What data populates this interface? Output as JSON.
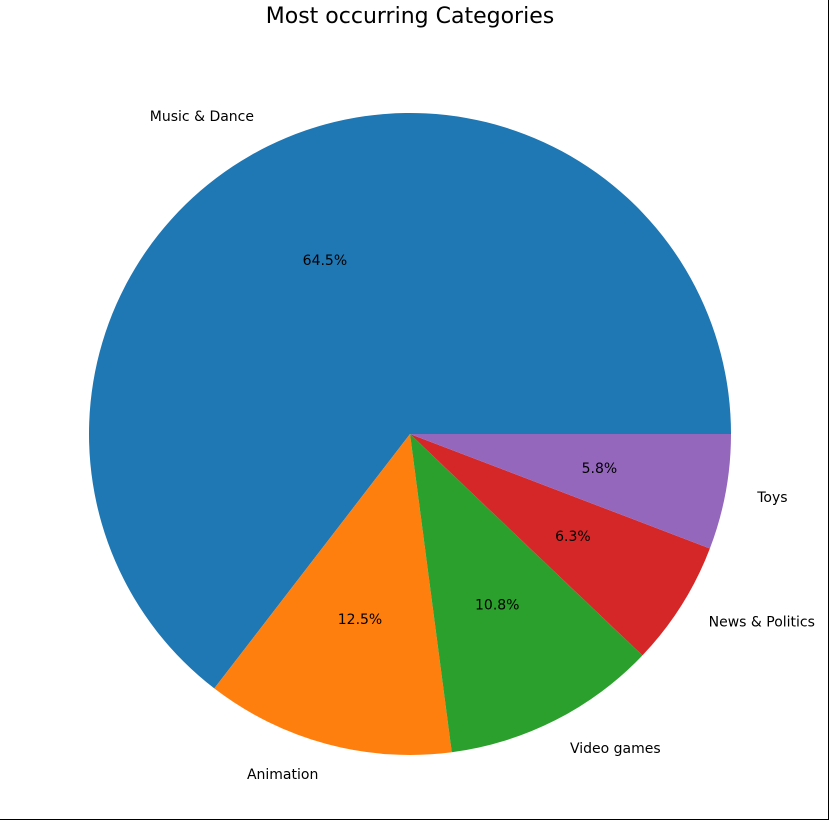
{
  "chart_data": {
    "type": "pie",
    "title": "Most occurring Categories",
    "categories": [
      "Music & Dance",
      "Animation",
      "Video games",
      "News & Politics",
      "Toys"
    ],
    "values": [
      64.5,
      12.5,
      10.8,
      6.3,
      5.8
    ],
    "value_labels": [
      "64.5%",
      "12.5%",
      "10.8%",
      "6.3%",
      "5.8%"
    ],
    "colors": [
      "#1f77b4",
      "#ff7f0e",
      "#2ca02c",
      "#d62728",
      "#9467bd"
    ],
    "start_angle_deg": 0,
    "direction": "counterclockwise"
  }
}
